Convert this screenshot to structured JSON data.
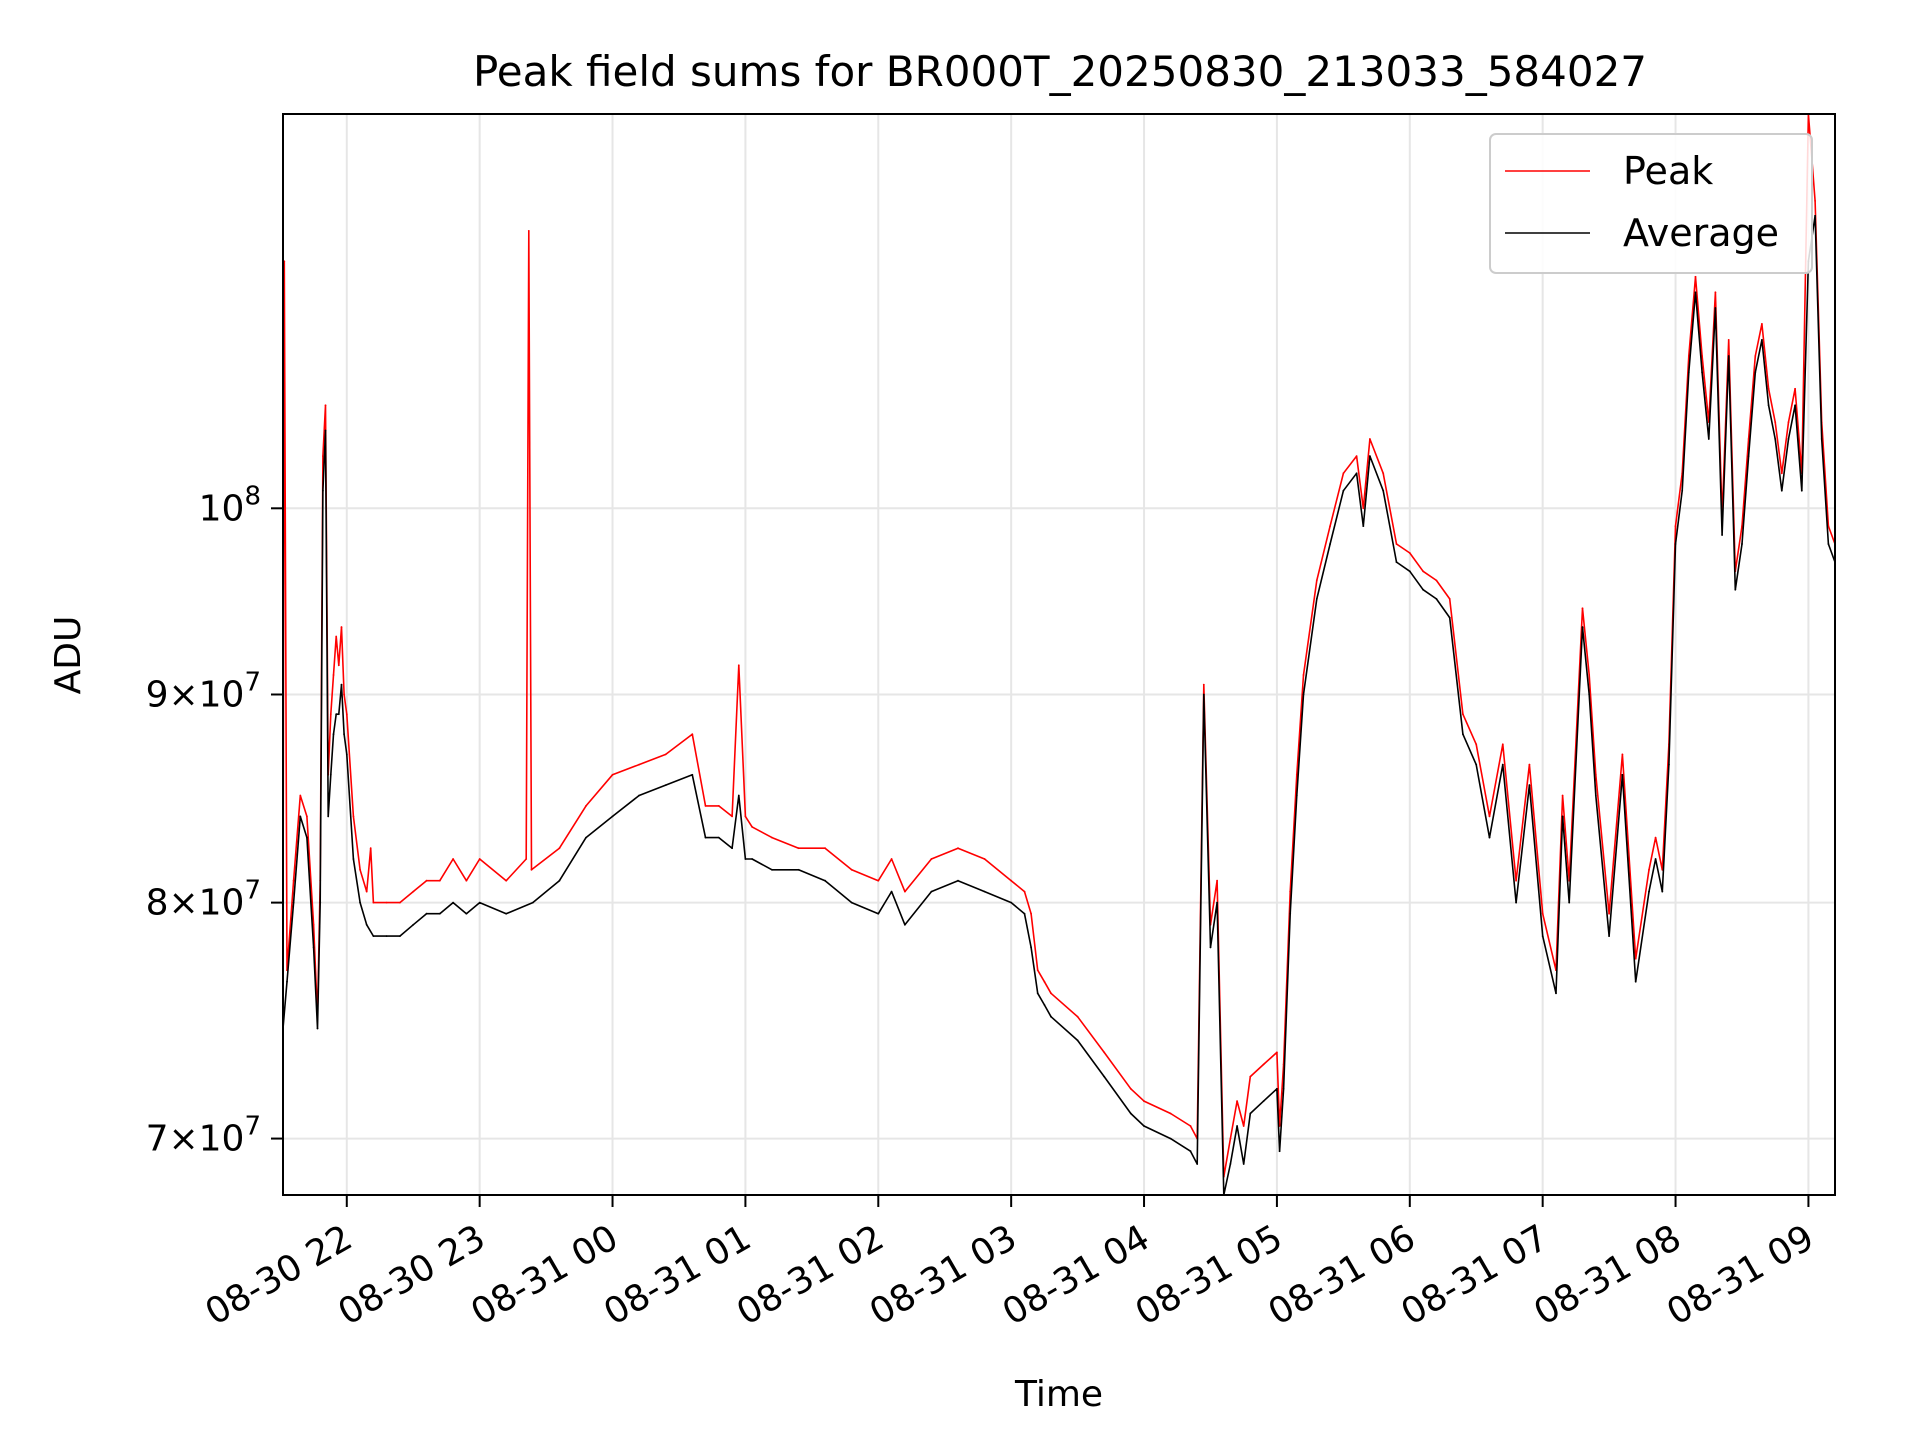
{
  "chart_data": {
    "type": "line",
    "title": "Peak field sums for BR000T_20250830_213033_584027",
    "xlabel": "Time",
    "ylabel": "ADU",
    "yscale": "log",
    "xlim": [
      -0.48,
      11.2
    ],
    "ylim": [
      67800000,
      125000000
    ],
    "grid": true,
    "legend_position": "top-right",
    "x_unit": "hours after 2025-08-30 22:00",
    "x_ticks": [
      {
        "x": 0,
        "label": "08-30 22"
      },
      {
        "x": 1,
        "label": "08-30 23"
      },
      {
        "x": 2,
        "label": "08-31 00"
      },
      {
        "x": 3,
        "label": "08-31 01"
      },
      {
        "x": 4,
        "label": "08-31 02"
      },
      {
        "x": 5,
        "label": "08-31 03"
      },
      {
        "x": 6,
        "label": "08-31 04"
      },
      {
        "x": 7,
        "label": "08-31 05"
      },
      {
        "x": 8,
        "label": "08-31 06"
      },
      {
        "x": 9,
        "label": "08-31 07"
      },
      {
        "x": 10,
        "label": "08-31 08"
      },
      {
        "x": 11,
        "label": "08-31 09"
      }
    ],
    "y_ticks": [
      {
        "value": 70000000,
        "mantissa": "7",
        "exponent": "7"
      },
      {
        "value": 80000000,
        "mantissa": "8",
        "exponent": "7"
      },
      {
        "value": 90000000,
        "mantissa": "9",
        "exponent": "7"
      },
      {
        "value": 100000000,
        "mantissa": "",
        "exponent": "8"
      }
    ],
    "series": [
      {
        "name": "Average",
        "color": "#000000",
        "x": [
          -0.48,
          -0.45,
          -0.4,
          -0.35,
          -0.3,
          -0.25,
          -0.22,
          -0.2,
          -0.18,
          -0.16,
          -0.14,
          -0.12,
          -0.1,
          -0.08,
          -0.06,
          -0.04,
          -0.02,
          0.0,
          0.05,
          0.1,
          0.15,
          0.2,
          0.3,
          0.4,
          0.5,
          0.6,
          0.7,
          0.8,
          0.9,
          1.0,
          1.2,
          1.4,
          1.6,
          1.8,
          2.0,
          2.2,
          2.4,
          2.6,
          2.7,
          2.8,
          2.9,
          2.95,
          3.0,
          3.05,
          3.2,
          3.4,
          3.6,
          3.8,
          4.0,
          4.1,
          4.2,
          4.4,
          4.6,
          4.8,
          5.0,
          5.1,
          5.15,
          5.2,
          5.25,
          5.3,
          5.5,
          5.7,
          5.9,
          6.0,
          6.2,
          6.35,
          6.4,
          6.45,
          6.5,
          6.55,
          6.6,
          6.65,
          6.7,
          6.75,
          6.8,
          6.9,
          7.0,
          7.02,
          7.05,
          7.1,
          7.15,
          7.2,
          7.3,
          7.4,
          7.5,
          7.6,
          7.65,
          7.7,
          7.8,
          7.9,
          8.0,
          8.1,
          8.2,
          8.3,
          8.4,
          8.5,
          8.6,
          8.7,
          8.8,
          8.9,
          9.0,
          9.1,
          9.15,
          9.2,
          9.3,
          9.35,
          9.4,
          9.5,
          9.6,
          9.7,
          9.8,
          9.85,
          9.9,
          9.95,
          10.0,
          10.05,
          10.1,
          10.15,
          10.2,
          10.25,
          10.3,
          10.35,
          10.4,
          10.45,
          10.5,
          10.55,
          10.6,
          10.65,
          10.7,
          10.75,
          10.8,
          10.85,
          10.9,
          10.95,
          11.0,
          11.05,
          11.1,
          11.15,
          11.2
        ],
        "values": [
          74500000,
          76500000,
          80000000,
          84000000,
          83000000,
          78000000,
          74500000,
          80000000,
          101000000,
          104500000,
          84000000,
          86000000,
          88000000,
          89000000,
          89000000,
          90500000,
          88000000,
          87000000,
          82000000,
          80000000,
          79000000,
          78500000,
          78500000,
          78500000,
          79000000,
          79500000,
          79500000,
          80000000,
          79500000,
          80000000,
          79500000,
          80000000,
          81000000,
          83000000,
          84000000,
          85000000,
          85500000,
          86000000,
          83000000,
          83000000,
          82500000,
          85000000,
          82000000,
          82000000,
          81500000,
          81500000,
          81000000,
          80000000,
          79500000,
          80500000,
          79000000,
          80500000,
          81000000,
          80500000,
          80000000,
          79500000,
          78000000,
          76000000,
          75500000,
          75000000,
          74000000,
          72500000,
          71000000,
          70500000,
          70000000,
          69500000,
          69000000,
          90000000,
          78000000,
          80000000,
          67800000,
          69000000,
          70500000,
          69000000,
          71000000,
          71500000,
          72000000,
          69500000,
          72000000,
          79500000,
          85000000,
          90000000,
          95000000,
          98000000,
          101000000,
          102000000,
          99000000,
          103000000,
          101000000,
          97000000,
          96500000,
          95500000,
          95000000,
          94000000,
          88000000,
          86500000,
          83000000,
          86500000,
          80000000,
          85500000,
          78500000,
          76000000,
          84000000,
          80000000,
          93500000,
          90000000,
          85000000,
          78500000,
          86000000,
          76500000,
          80500000,
          82000000,
          80500000,
          86500000,
          98000000,
          101000000,
          108000000,
          113000000,
          108000000,
          104000000,
          112000000,
          98500000,
          109000000,
          95500000,
          98000000,
          103000000,
          108000000,
          110000000,
          106000000,
          104000000,
          101000000,
          104000000,
          106000000,
          101000000,
          115000000,
          118000000,
          104000000,
          98000000,
          97000000
        ]
      },
      {
        "name": "Peak",
        "color": "#ff0000",
        "x": [
          -0.48,
          -0.47,
          -0.45,
          -0.4,
          -0.35,
          -0.3,
          -0.25,
          -0.22,
          -0.2,
          -0.18,
          -0.16,
          -0.14,
          -0.12,
          -0.1,
          -0.08,
          -0.06,
          -0.04,
          -0.02,
          0.0,
          0.05,
          0.1,
          0.15,
          0.18,
          0.2,
          0.3,
          0.4,
          0.5,
          0.6,
          0.7,
          0.8,
          0.9,
          1.0,
          1.2,
          1.35,
          1.37,
          1.39,
          1.6,
          1.8,
          2.0,
          2.2,
          2.4,
          2.6,
          2.7,
          2.8,
          2.9,
          2.95,
          3.0,
          3.05,
          3.2,
          3.4,
          3.6,
          3.8,
          4.0,
          4.1,
          4.2,
          4.4,
          4.6,
          4.8,
          5.0,
          5.1,
          5.15,
          5.2,
          5.25,
          5.3,
          5.5,
          5.7,
          5.9,
          6.0,
          6.2,
          6.35,
          6.4,
          6.45,
          6.5,
          6.55,
          6.6,
          6.65,
          6.7,
          6.75,
          6.8,
          6.9,
          7.0,
          7.02,
          7.05,
          7.1,
          7.15,
          7.2,
          7.3,
          7.4,
          7.5,
          7.6,
          7.65,
          7.7,
          7.8,
          7.9,
          8.0,
          8.1,
          8.2,
          8.3,
          8.4,
          8.5,
          8.6,
          8.7,
          8.8,
          8.9,
          9.0,
          9.1,
          9.15,
          9.2,
          9.3,
          9.35,
          9.4,
          9.5,
          9.6,
          9.7,
          9.8,
          9.85,
          9.9,
          9.95,
          10.0,
          10.05,
          10.1,
          10.15,
          10.2,
          10.25,
          10.3,
          10.35,
          10.4,
          10.45,
          10.5,
          10.55,
          10.6,
          10.65,
          10.7,
          10.75,
          10.8,
          10.85,
          10.9,
          10.95,
          11.0,
          11.05,
          11.1,
          11.15,
          11.2
        ],
        "values": [
          78000000,
          115000000,
          77000000,
          81000000,
          85000000,
          84000000,
          79000000,
          75000000,
          81000000,
          103000000,
          106000000,
          86000000,
          89000000,
          91000000,
          93000000,
          91500000,
          93500000,
          90000000,
          89000000,
          84000000,
          81500000,
          80500000,
          82500000,
          80000000,
          80000000,
          80000000,
          80500000,
          81000000,
          81000000,
          82000000,
          81000000,
          82000000,
          81000000,
          82000000,
          117000000,
          81500000,
          82500000,
          84500000,
          86000000,
          86500000,
          87000000,
          88000000,
          84500000,
          84500000,
          84000000,
          91500000,
          84000000,
          83500000,
          83000000,
          82500000,
          82500000,
          81500000,
          81000000,
          82000000,
          80500000,
          82000000,
          82500000,
          82000000,
          81000000,
          80500000,
          79500000,
          77000000,
          76500000,
          76000000,
          75000000,
          73500000,
          72000000,
          71500000,
          71000000,
          70500000,
          70000000,
          90500000,
          79000000,
          81000000,
          68500000,
          70000000,
          71500000,
          70500000,
          72500000,
          73000000,
          73500000,
          70500000,
          73000000,
          80500000,
          86000000,
          91000000,
          96000000,
          99000000,
          102000000,
          103000000,
          100000000,
          104000000,
          102000000,
          98000000,
          97500000,
          96500000,
          96000000,
          95000000,
          89000000,
          87500000,
          84000000,
          87500000,
          81000000,
          86500000,
          79500000,
          77000000,
          85000000,
          81000000,
          94500000,
          91000000,
          86000000,
          79500000,
          87000000,
          77500000,
          81500000,
          83000000,
          81500000,
          87500000,
          99000000,
          102000000,
          109000000,
          114000000,
          109000000,
          105000000,
          113000000,
          99500000,
          110000000,
          96500000,
          99000000,
          104000000,
          109000000,
          111000000,
          107000000,
          105000000,
          102000000,
          105000000,
          107000000,
          102000000,
          125000000,
          119000000,
          105000000,
          99000000,
          98000000
        ]
      }
    ]
  }
}
